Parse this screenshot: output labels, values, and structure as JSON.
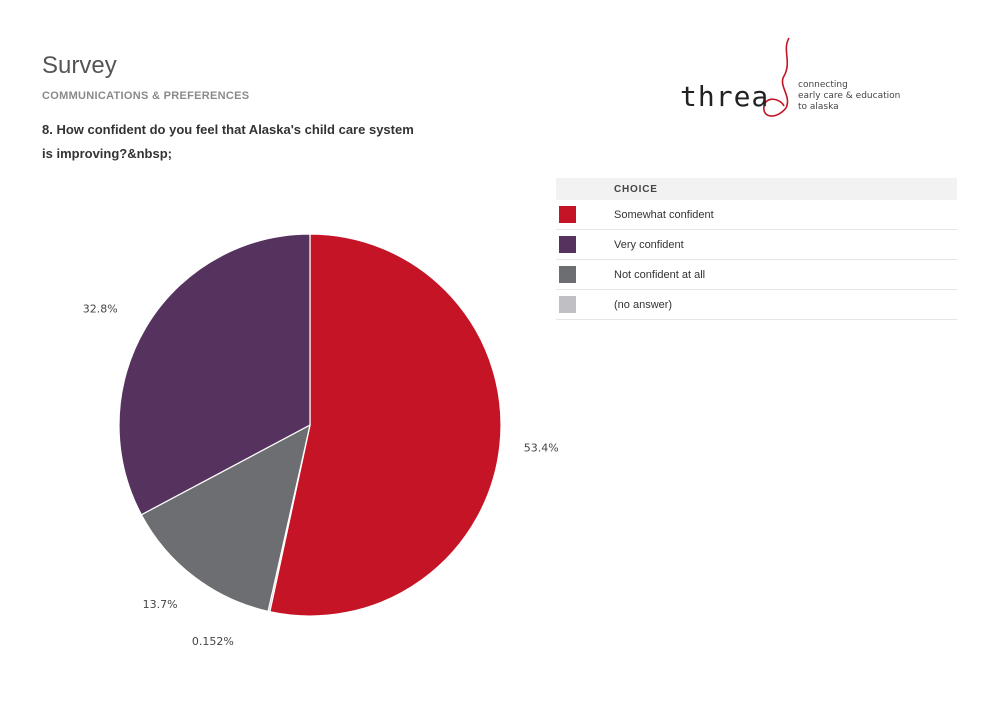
{
  "header": {
    "title": "Survey",
    "section": "COMMUNICATIONS & PREFERENCES",
    "question_line1": "8. How confident do you feel that Alaska's child care system",
    "question_line2": "is improving?&nbsp;"
  },
  "logo": {
    "word": "threa",
    "tag1": "connecting",
    "tag2": "early care & education",
    "tag3": "to alaska",
    "icon": "thread-swirl-logo-icon"
  },
  "legend": {
    "header": "CHOICE"
  },
  "chart_data": {
    "type": "pie",
    "title": "",
    "slices": [
      {
        "name": "Somewhat confident",
        "value": 53.4,
        "label": "53.4%",
        "color": "#c41426"
      },
      {
        "name": "(no answer)",
        "value": 0.152,
        "label": "0.152%",
        "color": "#bfbfc4"
      },
      {
        "name": "Not confident at all",
        "value": 13.7,
        "label": "13.7%",
        "color": "#6d6e71"
      },
      {
        "name": "Very confident",
        "value": 32.8,
        "label": "32.8%",
        "color": "#56325f"
      }
    ],
    "legend_order": [
      "Somewhat confident",
      "Very confident",
      "Not confident at all",
      "(no answer)"
    ],
    "legend_placement": "right"
  }
}
